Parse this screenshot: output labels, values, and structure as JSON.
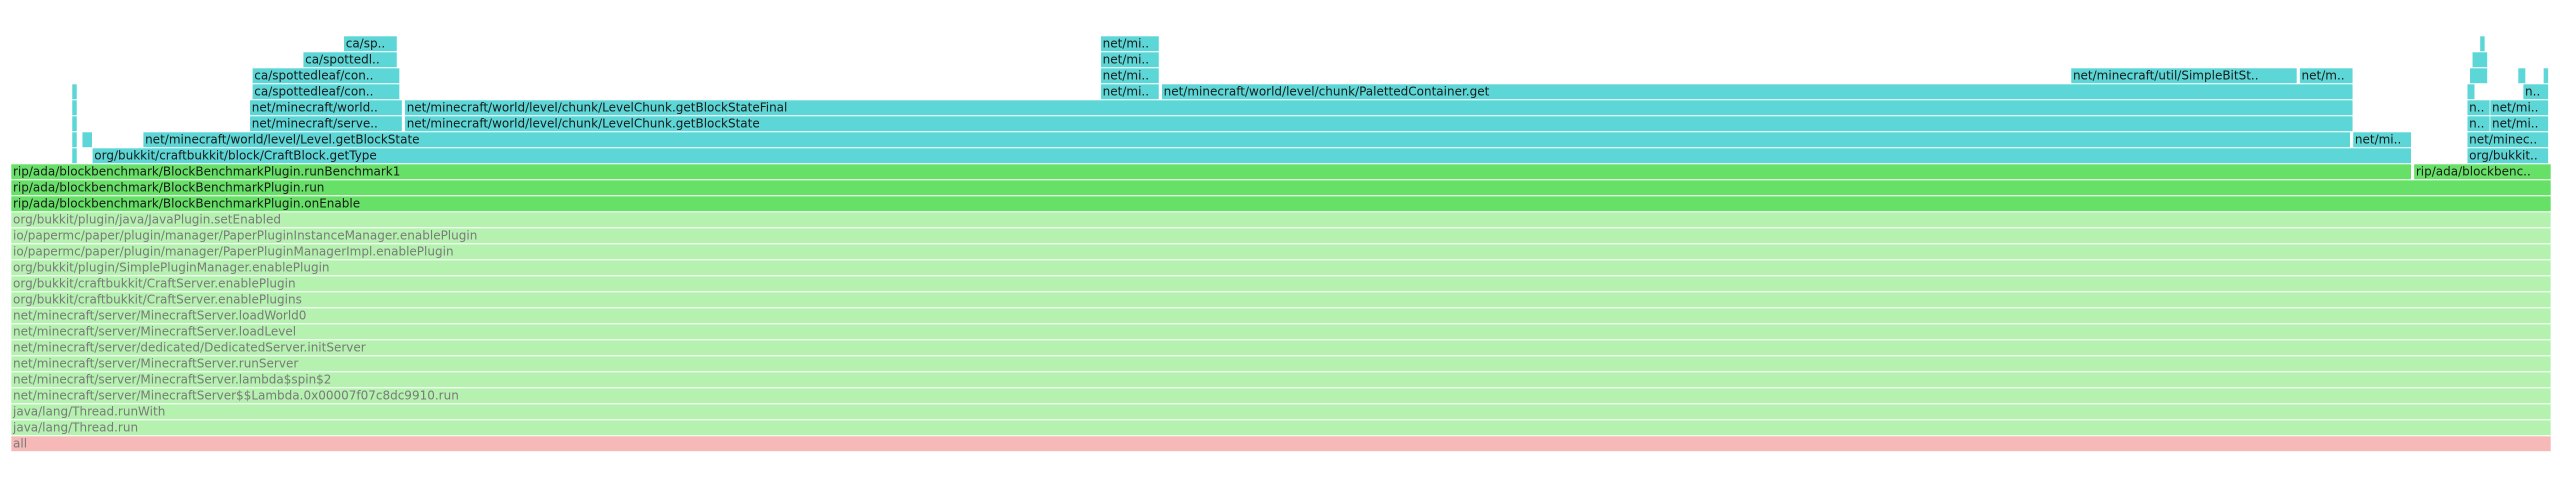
{
  "chart_data": {
    "type": "flame",
    "frames": [
      {
        "label": "all",
        "level": 0,
        "start": 0,
        "width": 100,
        "color": "#f7b8b8"
      },
      {
        "label": "java/lang/Thread.run",
        "level": 1,
        "start": 0,
        "width": 100,
        "color": "#b5f2b0"
      },
      {
        "label": "java/lang/Thread.runWith",
        "level": 2,
        "start": 0,
        "width": 100,
        "color": "#b5f2b0"
      },
      {
        "label": "net/minecraft/server/MinecraftServer$$Lambda.0x00007f07c8dc9910.run",
        "level": 3,
        "start": 0,
        "width": 100,
        "color": "#b5f2b0"
      },
      {
        "label": "net/minecraft/server/MinecraftServer.lambda$spin$2",
        "level": 4,
        "start": 0,
        "width": 100,
        "color": "#b5f2b0"
      },
      {
        "label": "net/minecraft/server/MinecraftServer.runServer",
        "level": 5,
        "start": 0,
        "width": 100,
        "color": "#b5f2b0"
      },
      {
        "label": "net/minecraft/server/dedicated/DedicatedServer.initServer",
        "level": 6,
        "start": 0,
        "width": 100,
        "color": "#b5f2b0"
      },
      {
        "label": "net/minecraft/server/MinecraftServer.loadLevel",
        "level": 7,
        "start": 0,
        "width": 100,
        "color": "#b5f2b0"
      },
      {
        "label": "net/minecraft/server/MinecraftServer.loadWorld0",
        "level": 8,
        "start": 0,
        "width": 100,
        "color": "#b5f2b0"
      },
      {
        "label": "org/bukkit/craftbukkit/CraftServer.enablePlugins",
        "level": 9,
        "start": 0,
        "width": 100,
        "color": "#b5f2b0"
      },
      {
        "label": "org/bukkit/craftbukkit/CraftServer.enablePlugin",
        "level": 10,
        "start": 0,
        "width": 100,
        "color": "#b5f2b0"
      },
      {
        "label": "org/bukkit/plugin/SimplePluginManager.enablePlugin",
        "level": 11,
        "start": 0,
        "width": 100,
        "color": "#b5f2b0"
      },
      {
        "label": "io/papermc/paper/plugin/manager/PaperPluginManagerImpl.enablePlugin",
        "level": 12,
        "start": 0,
        "width": 100,
        "color": "#b5f2b0"
      },
      {
        "label": "io/papermc/paper/plugin/manager/PaperPluginInstanceManager.enablePlugin",
        "level": 13,
        "start": 0,
        "width": 100,
        "color": "#b5f2b0"
      },
      {
        "label": "org/bukkit/plugin/java/JavaPlugin.setEnabled",
        "level": 14,
        "start": 0,
        "width": 100,
        "color": "#b5f2b0"
      },
      {
        "label": "rip/ada/blockbenchmark/BlockBenchmarkPlugin.onEnable",
        "level": 15,
        "start": 0,
        "width": 100,
        "color": "#66e066"
      },
      {
        "label": "rip/ada/blockbenchmark/BlockBenchmarkPlugin.run",
        "level": 16,
        "start": 0,
        "width": 100,
        "color": "#66e066"
      },
      {
        "label": "rip/ada/blockbenchmark/BlockBenchmarkPlugin.runBenchmark1",
        "level": 17,
        "start": 0,
        "width": 94.5,
        "color": "#66e066"
      },
      {
        "label": "rip/ada/blockbenc..",
        "level": 17,
        "start": 94.6,
        "width": 5.4,
        "color": "#66e066"
      },
      {
        "label": null,
        "level": 18,
        "start": 2.4,
        "width": 0.2,
        "color": "#5cd6d6"
      },
      {
        "label": "org/bukkit/craftbukkit/block/CraftBlock.getType",
        "level": 18,
        "start": 3.2,
        "width": 91.3,
        "color": "#5cd6d6"
      },
      {
        "label": "org/bukkit..",
        "level": 18,
        "start": 96.7,
        "width": 3.2,
        "color": "#5cd6d6"
      },
      {
        "label": null,
        "level": 19,
        "start": 2.4,
        "width": 0.2,
        "color": "#5cd6d6"
      },
      {
        "label": null,
        "level": 19,
        "start": 2.8,
        "width": 0.4,
        "color": "#5cd6d6"
      },
      {
        "label": "net/minecraft/world/level/Level.getBlockState",
        "level": 19,
        "start": 5.2,
        "width": 86.9,
        "color": "#5cd6d6"
      },
      {
        "label": "net/mi..",
        "level": 19,
        "start": 92.2,
        "width": 2.3,
        "color": "#5cd6d6"
      },
      {
        "label": "net/minec..",
        "level": 19,
        "start": 96.7,
        "width": 3.2,
        "color": "#5cd6d6"
      },
      {
        "label": null,
        "level": 20,
        "start": 2.4,
        "width": 0.2,
        "color": "#5cd6d6"
      },
      {
        "label": "net/minecraft/serve..",
        "level": 20,
        "start": 9.4,
        "width": 6.0,
        "color": "#5cd6d6"
      },
      {
        "label": "net/minecraft/world/level/chunk/LevelChunk.getBlockState",
        "level": 20,
        "start": 15.5,
        "width": 76.7,
        "color": "#5cd6d6"
      },
      {
        "label": "n..",
        "level": 20,
        "start": 96.7,
        "width": 0.9,
        "color": "#5cd6d6"
      },
      {
        "label": "net/mi..",
        "level": 20,
        "start": 97.6,
        "width": 2.3,
        "color": "#5cd6d6"
      },
      {
        "label": null,
        "level": 21,
        "start": 2.4,
        "width": 0.2,
        "color": "#5cd6d6"
      },
      {
        "label": "net/minecraft/world..",
        "level": 21,
        "start": 9.4,
        "width": 6.0,
        "color": "#5cd6d6"
      },
      {
        "label": "net/minecraft/world/level/chunk/LevelChunk.getBlockStateFinal",
        "level": 21,
        "start": 15.5,
        "width": 76.7,
        "color": "#5cd6d6"
      },
      {
        "label": "n..",
        "level": 21,
        "start": 96.7,
        "width": 0.9,
        "color": "#5cd6d6"
      },
      {
        "label": "net/mi..",
        "level": 21,
        "start": 97.6,
        "width": 2.3,
        "color": "#5cd6d6"
      },
      {
        "label": null,
        "level": 22,
        "start": 2.4,
        "width": 0.2,
        "color": "#5cd6d6"
      },
      {
        "label": "ca/spottedleaf/con..",
        "level": 22,
        "start": 9.5,
        "width": 5.8,
        "color": "#5cd6d6"
      },
      {
        "label": "net/mi..",
        "level": 22,
        "start": 42.9,
        "width": 2.3,
        "color": "#5cd6d6"
      },
      {
        "label": "net/minecraft/world/level/chunk/PalettedContainer.get",
        "level": 22,
        "start": 45.3,
        "width": 46.9,
        "color": "#5cd6d6"
      },
      {
        "label": null,
        "level": 22,
        "start": 96.7,
        "width": 0.3,
        "color": "#5cd6d6"
      },
      {
        "label": "n..",
        "level": 22,
        "start": 98.9,
        "width": 1.0,
        "color": "#5cd6d6"
      },
      {
        "label": "ca/spottedleaf/con..",
        "level": 23,
        "start": 9.5,
        "width": 5.8,
        "color": "#5cd6d6"
      },
      {
        "label": "net/mi..",
        "level": 23,
        "start": 42.9,
        "width": 2.3,
        "color": "#5cd6d6"
      },
      {
        "label": "net/minecraft/util/SimpleBitSt..",
        "level": 23,
        "start": 81.1,
        "width": 8.9,
        "color": "#5cd6d6"
      },
      {
        "label": "net/m..",
        "level": 23,
        "start": 90.1,
        "width": 2.1,
        "color": "#5cd6d6"
      },
      {
        "label": null,
        "level": 23,
        "start": 96.8,
        "width": 0.7,
        "color": "#5cd6d6"
      },
      {
        "label": null,
        "level": 23,
        "start": 98.7,
        "width": 0.3,
        "color": "#5cd6d6"
      },
      {
        "label": null,
        "level": 23,
        "start": 99.7,
        "width": 0.2,
        "color": "#5cd6d6"
      },
      {
        "label": "ca/spottedl..",
        "level": 24,
        "start": 11.5,
        "width": 3.7,
        "color": "#5cd6d6"
      },
      {
        "label": "net/mi..",
        "level": 24,
        "start": 42.9,
        "width": 2.3,
        "color": "#5cd6d6"
      },
      {
        "label": null,
        "level": 24,
        "start": 96.9,
        "width": 0.6,
        "color": "#5cd6d6"
      },
      {
        "label": "ca/sp..",
        "level": 25,
        "start": 13.1,
        "width": 2.1,
        "color": "#5cd6d6"
      },
      {
        "label": "net/mi..",
        "level": 25,
        "start": 42.9,
        "width": 2.3,
        "color": "#5cd6d6"
      },
      {
        "label": null,
        "level": 25,
        "start": 97.2,
        "width": 0.2,
        "color": "#5cd6d6"
      }
    ]
  }
}
